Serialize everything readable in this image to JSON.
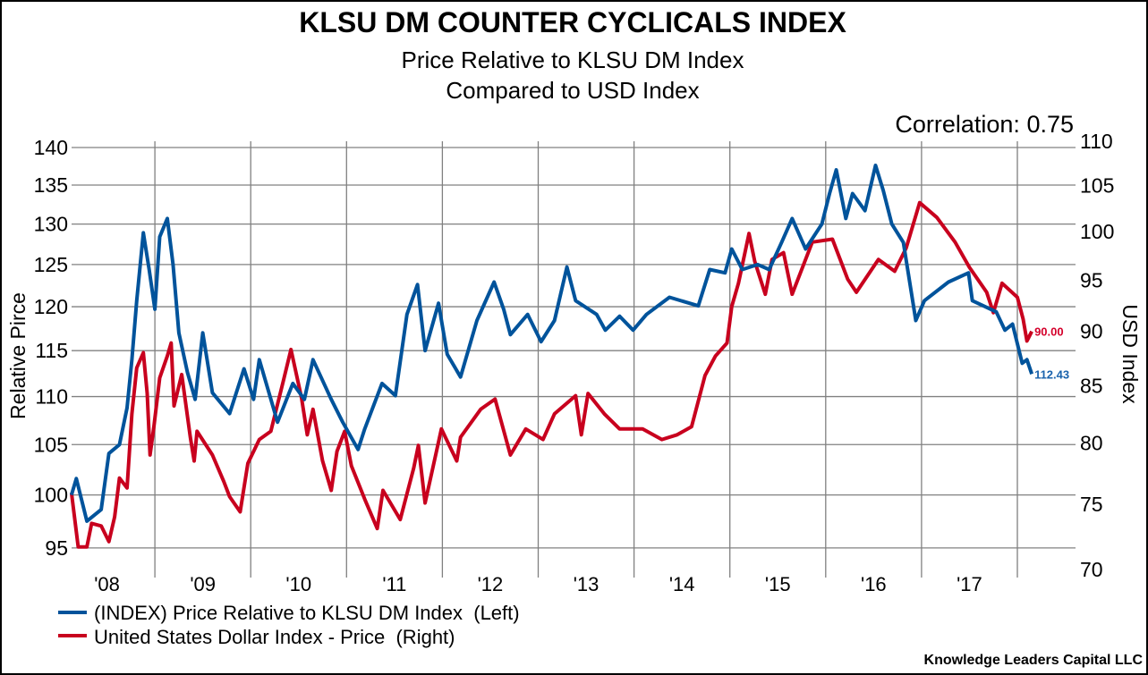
{
  "chart_data": {
    "type": "line",
    "title": "KLSU DM COUNTER CYCLICALS INDEX",
    "subtitle": [
      "Price Relative to KLSU DM Index",
      "Compared to USD Index"
    ],
    "annotation": "Correlation: 0.75",
    "source": "Knowledge Leaders Capital LLC",
    "ylabel_left": "Relative Pirce",
    "ylabel_right": "USD Index",
    "x_ticks": [
      "'08",
      "'09",
      "'10",
      "'11",
      "'12",
      "'13",
      "'14",
      "'15",
      "'16",
      "'17"
    ],
    "x_tick_years": [
      2008,
      2009,
      2010,
      2011,
      2012,
      2013,
      2014,
      2015,
      2016,
      2017
    ],
    "xlim": [
      2008,
      2018.54
    ],
    "y_left_ticks": [
      95,
      100,
      105,
      110,
      115,
      120,
      125,
      130,
      135,
      140
    ],
    "y_left_lim": [
      95,
      140
    ],
    "y_left_scale": "log",
    "y_right_ticks": [
      70,
      75,
      80,
      85,
      90,
      95,
      100,
      105,
      110
    ],
    "y_right_lim": [
      70,
      110
    ],
    "y_right_scale": "log",
    "grid": true,
    "legend_position": "bottom-left",
    "series": [
      {
        "name": "(INDEX) Price Relative to KLSU DM Index  (Left)",
        "axis": "left",
        "color": "#00539b",
        "last_label": "112.43",
        "label_color": "#1a63ad",
        "x": [
          2008.13,
          2008.18,
          2008.29,
          2008.44,
          2008.52,
          2008.63,
          2008.71,
          2008.76,
          2008.81,
          2008.88,
          2008.94,
          2009.0,
          2009.05,
          2009.13,
          2009.19,
          2009.25,
          2009.34,
          2009.42,
          2009.5,
          2009.6,
          2009.78,
          2009.93,
          2010.03,
          2010.09,
          2010.28,
          2010.44,
          2010.56,
          2010.65,
          2010.84,
          2010.96,
          2011.12,
          2011.19,
          2011.37,
          2011.51,
          2011.63,
          2011.74,
          2011.82,
          2011.96,
          2012.05,
          2012.19,
          2012.36,
          2012.54,
          2012.64,
          2012.71,
          2012.89,
          2013.03,
          2013.17,
          2013.3,
          2013.39,
          2013.61,
          2013.7,
          2013.85,
          2013.99,
          2014.13,
          2014.37,
          2014.67,
          2014.79,
          2014.95,
          2015.02,
          2015.13,
          2015.29,
          2015.41,
          2015.54,
          2015.65,
          2015.79,
          2015.96,
          2016.04,
          2016.11,
          2016.21,
          2016.28,
          2016.41,
          2016.52,
          2016.6,
          2016.69,
          2016.81,
          2016.94,
          2017.03,
          2017.28,
          2017.49,
          2017.53,
          2017.78,
          2017.87,
          2017.95,
          2018.05,
          2018.1,
          2018.15
        ],
        "values": [
          100.0,
          101.6,
          97.5,
          98.6,
          104.1,
          105.0,
          108.8,
          114.0,
          120.7,
          128.9,
          124.4,
          119.7,
          128.4,
          130.7,
          125.0,
          117.0,
          112.6,
          109.7,
          117.0,
          110.4,
          108.2,
          113.0,
          109.7,
          114.0,
          107.3,
          111.4,
          109.7,
          114.0,
          109.7,
          107.3,
          104.5,
          106.6,
          111.4,
          110.1,
          119.1,
          122.6,
          115.0,
          120.4,
          114.6,
          112.1,
          118.4,
          122.9,
          119.7,
          116.8,
          119.1,
          116.0,
          118.4,
          124.7,
          120.7,
          119.1,
          117.3,
          118.9,
          117.3,
          119.1,
          121.1,
          120.1,
          124.4,
          124.0,
          126.9,
          124.4,
          125.0,
          124.4,
          127.7,
          130.7,
          126.9,
          130.0,
          133.9,
          137.0,
          130.7,
          133.9,
          131.7,
          137.6,
          134.3,
          130.0,
          127.7,
          118.4,
          120.7,
          122.9,
          124.0,
          120.7,
          119.4,
          117.3,
          118.0,
          113.6,
          114.0,
          112.43
        ]
      },
      {
        "name": "United States Dollar Index - Price  (Right)",
        "axis": "right",
        "color": "#c8001e",
        "last_label": "90.00",
        "label_color": "#d4002b",
        "x": [
          2008.13,
          2008.2,
          2008.29,
          2008.34,
          2008.44,
          2008.52,
          2008.58,
          2008.63,
          2008.71,
          2008.76,
          2008.81,
          2008.88,
          2008.92,
          2008.95,
          2008.99,
          2009.05,
          2009.13,
          2009.17,
          2009.2,
          2009.28,
          2009.37,
          2009.41,
          2009.44,
          2009.6,
          2009.72,
          2009.78,
          2009.89,
          2009.97,
          2010.09,
          2010.21,
          2010.34,
          2010.42,
          2010.53,
          2010.59,
          2010.65,
          2010.75,
          2010.84,
          2010.9,
          2010.98,
          2011.05,
          2011.19,
          2011.32,
          2011.38,
          2011.56,
          2011.7,
          2011.75,
          2011.82,
          2011.99,
          2012.15,
          2012.19,
          2012.4,
          2012.55,
          2012.71,
          2012.87,
          2013.05,
          2013.17,
          2013.39,
          2013.45,
          2013.52,
          2013.69,
          2013.85,
          2014.09,
          2014.29,
          2014.45,
          2014.6,
          2014.74,
          2014.85,
          2014.97,
          2015.02,
          2015.09,
          2015.2,
          2015.26,
          2015.37,
          2015.44,
          2015.56,
          2015.65,
          2015.86,
          2016.07,
          2016.23,
          2016.32,
          2016.55,
          2016.72,
          2016.84,
          2016.98,
          2017.16,
          2017.35,
          2017.5,
          2017.68,
          2017.75,
          2017.84,
          2018.0,
          2018.06,
          2018.1,
          2018.15
        ],
        "values": [
          75.9,
          71.7,
          71.7,
          73.5,
          73.3,
          72.1,
          74.0,
          77.1,
          76.3,
          82.5,
          86.6,
          88.0,
          84.3,
          79.0,
          81.4,
          85.7,
          87.7,
          88.9,
          83.2,
          86.0,
          80.5,
          78.5,
          81.0,
          79.0,
          76.8,
          75.6,
          74.4,
          78.3,
          80.3,
          81.0,
          85.4,
          88.3,
          83.9,
          80.7,
          82.9,
          78.5,
          76.1,
          79.3,
          81.0,
          78.1,
          75.4,
          73.1,
          76.1,
          73.8,
          77.9,
          79.8,
          75.1,
          81.2,
          78.5,
          80.5,
          82.9,
          83.8,
          79.0,
          81.2,
          80.3,
          82.5,
          84.1,
          80.7,
          84.3,
          82.5,
          81.2,
          81.2,
          80.3,
          80.7,
          81.4,
          85.9,
          87.7,
          88.9,
          92.4,
          94.7,
          99.8,
          96.9,
          93.6,
          97.1,
          97.8,
          93.6,
          98.9,
          99.2,
          95.1,
          93.8,
          97.1,
          95.9,
          98.3,
          103.1,
          101.5,
          98.9,
          96.3,
          93.8,
          91.8,
          94.7,
          93.3,
          91.2,
          89.1,
          90.0
        ]
      }
    ]
  }
}
